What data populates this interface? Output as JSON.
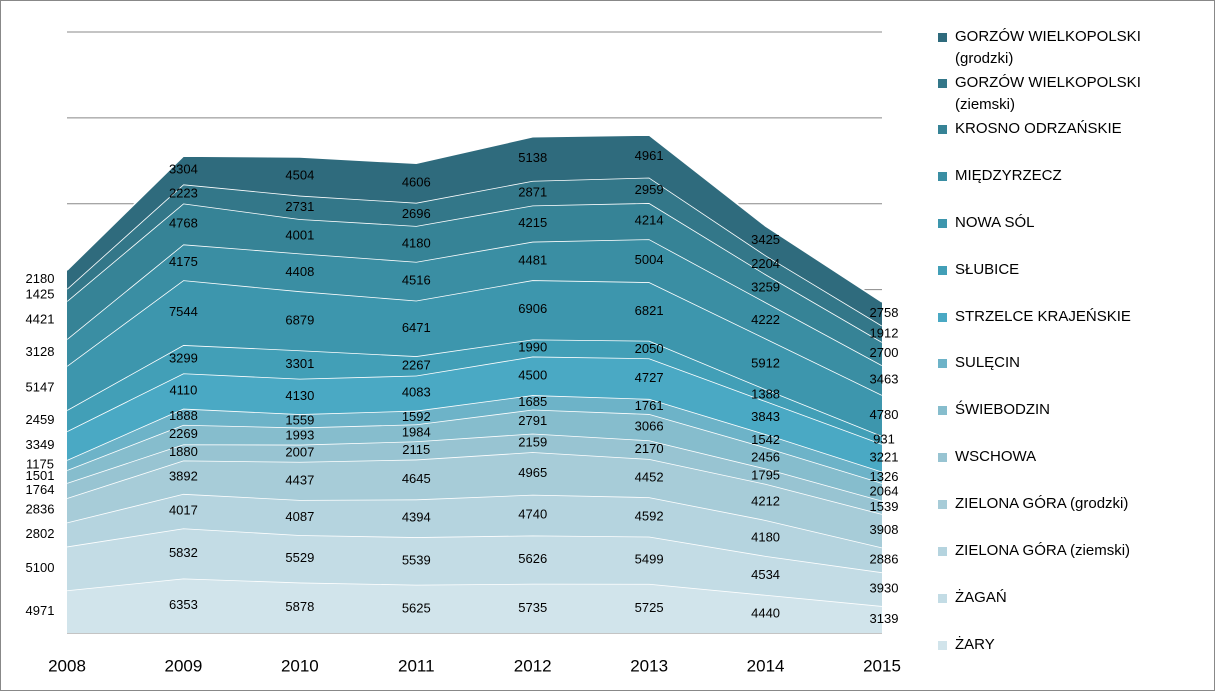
{
  "chart_data": {
    "type": "stacked_area",
    "categories": [
      "2008",
      "2009",
      "2010",
      "2011",
      "2012",
      "2013",
      "2014",
      "2015"
    ],
    "series": [
      {
        "name": "GORZÓW WIELKOPOLSKI (grodzki)",
        "color": "#2f6b7d",
        "values": [
          2180,
          3304,
          4504,
          4606,
          5138,
          4961,
          3425,
          2758
        ]
      },
      {
        "name": "GORZÓW WIELKOPOLSKI (ziemski)",
        "color": "#337789",
        "values": [
          1425,
          2223,
          2731,
          2696,
          2871,
          2959,
          2204,
          1912
        ]
      },
      {
        "name": "KROSNO ODRZAŃSKIE",
        "color": "#368396",
        "values": [
          4421,
          4768,
          4001,
          4180,
          4215,
          4214,
          3259,
          2700
        ]
      },
      {
        "name": "MIĘDZYRZECZ",
        "color": "#3a8ea3",
        "values": [
          3128,
          4175,
          4408,
          4516,
          4481,
          5004,
          4222,
          3463
        ]
      },
      {
        "name": "NOWA  SÓL",
        "color": "#3d96ad",
        "values": [
          5147,
          7544,
          6879,
          6471,
          6906,
          6821,
          5912,
          4780
        ]
      },
      {
        "name": "SŁUBICE",
        "color": "#429fb7",
        "values": [
          2459,
          3299,
          3301,
          2267,
          1990,
          2050,
          1388,
          931
        ]
      },
      {
        "name": "STRZELCE KRAJEŃSKIE",
        "color": "#4aa9c4",
        "values": [
          3349,
          4110,
          4130,
          4083,
          4500,
          4727,
          3843,
          3221
        ]
      },
      {
        "name": "SULĘCIN",
        "color": "#6db3c8",
        "values": [
          1175,
          1888,
          1559,
          1592,
          1685,
          1761,
          1542,
          1326
        ]
      },
      {
        "name": "ŚWIEBODZIN",
        "color": "#86bdcd",
        "values": [
          1501,
          2269,
          1993,
          1984,
          2791,
          3066,
          2456,
          2064
        ]
      },
      {
        "name": "WSCHOWA",
        "color": "#98c4d2",
        "values": [
          1764,
          1880,
          2007,
          2115,
          2159,
          2170,
          1795,
          1539
        ]
      },
      {
        "name": "ZIELONA  GÓRA (grodzki)",
        "color": "#a7ccd8",
        "values": [
          2836,
          3892,
          4437,
          4645,
          4965,
          4452,
          4212,
          3908
        ]
      },
      {
        "name": "ZIELONA  GÓRA (ziemski)",
        "color": "#b5d4df",
        "values": [
          2802,
          4017,
          4087,
          4394,
          4740,
          4592,
          4180,
          2886
        ]
      },
      {
        "name": "ŻAGAŃ",
        "color": "#c3dce5",
        "values": [
          5100,
          5832,
          5529,
          5539,
          5626,
          5499,
          4534,
          3930
        ]
      },
      {
        "name": "ŻARY",
        "color": "#d1e4eb",
        "values": [
          4971,
          6353,
          5878,
          5625,
          5735,
          5725,
          4440,
          3139
        ]
      }
    ],
    "ylim": [
      0,
      70000
    ],
    "yticks": [
      0,
      10000,
      20000,
      30000,
      40000,
      50000,
      60000,
      70000
    ],
    "grid": true
  }
}
